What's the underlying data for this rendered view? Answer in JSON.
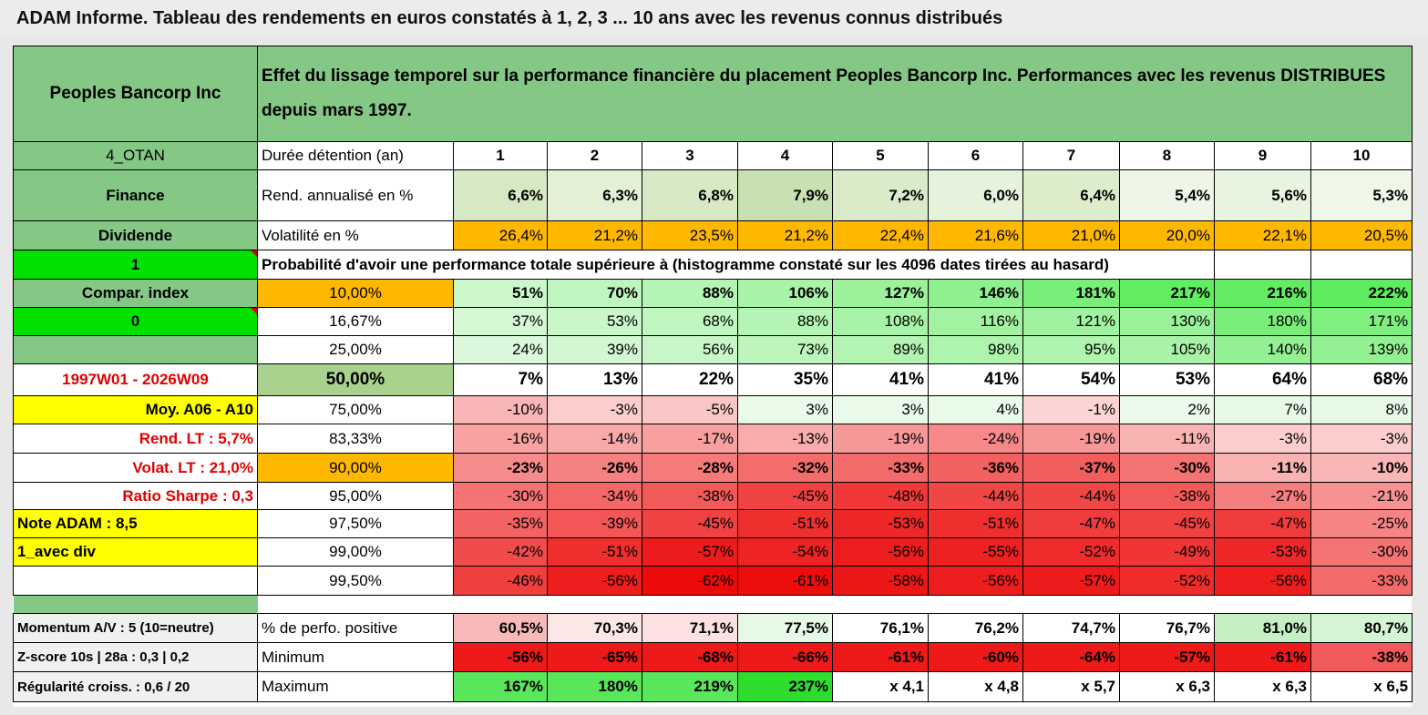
{
  "title": "ADAM Informe. Tableau des rendements en euros constatés à 1, 2, 3 ... 10 ans avec les revenus connus distribués",
  "header": {
    "company": "Peoples Bancorp Inc",
    "description": "Effet du lissage temporel sur la performance financière du placement Peoples Bancorp Inc. Performances avec les revenus DISTRIBUES depuis mars 1997."
  },
  "side": {
    "code": "4_OTAN",
    "sector": "Finance",
    "category": "Dividende",
    "flag1": "1",
    "compar_index": "Compar. index",
    "flag0": "0",
    "period": "1997W01 - 2026W09",
    "moy": "Moy. A06 - A10",
    "rend_lt": "Rend. LT :   5,7%",
    "volat_lt": "Volat. LT :   21,0%",
    "sharpe": "Ratio Sharpe :    0,3",
    "note": "Note ADAM : 8,5",
    "avec_div": "1_avec div"
  },
  "duration_label": "Durée détention (an)",
  "durations": [
    "1",
    "2",
    "3",
    "4",
    "5",
    "6",
    "7",
    "8",
    "9",
    "10"
  ],
  "rend_label": "Rend. annualisé en %",
  "rend": [
    "6,6%",
    "6,3%",
    "6,8%",
    "7,9%",
    "7,2%",
    "6,0%",
    "6,4%",
    "5,4%",
    "5,6%",
    "5,3%"
  ],
  "vol_label": "Volatilité en %",
  "vol": [
    "26,4%",
    "21,2%",
    "23,5%",
    "21,2%",
    "22,4%",
    "21,6%",
    "21,0%",
    "20,0%",
    "22,1%",
    "20,5%"
  ],
  "prob_label": "Probabilité d'avoir une performance totale supérieure à (histogramme constaté sur les 4096 dates tirées au hasard)",
  "quantiles": [
    {
      "p": "10,00%",
      "vals": [
        "51%",
        "70%",
        "88%",
        "106%",
        "127%",
        "146%",
        "181%",
        "217%",
        "216%",
        "222%"
      ]
    },
    {
      "p": "16,67%",
      "vals": [
        "37%",
        "53%",
        "68%",
        "88%",
        "108%",
        "116%",
        "121%",
        "130%",
        "180%",
        "171%"
      ]
    },
    {
      "p": "25,00%",
      "vals": [
        "24%",
        "39%",
        "56%",
        "73%",
        "89%",
        "98%",
        "95%",
        "105%",
        "140%",
        "139%"
      ]
    },
    {
      "p": "50,00%",
      "vals": [
        "7%",
        "13%",
        "22%",
        "35%",
        "41%",
        "41%",
        "54%",
        "53%",
        "64%",
        "68%"
      ]
    },
    {
      "p": "75,00%",
      "vals": [
        "-10%",
        "-3%",
        "-5%",
        "3%",
        "3%",
        "4%",
        "-1%",
        "2%",
        "7%",
        "8%"
      ]
    },
    {
      "p": "83,33%",
      "vals": [
        "-16%",
        "-14%",
        "-17%",
        "-13%",
        "-19%",
        "-24%",
        "-19%",
        "-11%",
        "-3%",
        "-3%"
      ]
    },
    {
      "p": "90,00%",
      "vals": [
        "-23%",
        "-26%",
        "-28%",
        "-32%",
        "-33%",
        "-36%",
        "-37%",
        "-30%",
        "-11%",
        "-10%"
      ]
    },
    {
      "p": "95,00%",
      "vals": [
        "-30%",
        "-34%",
        "-38%",
        "-45%",
        "-48%",
        "-44%",
        "-44%",
        "-38%",
        "-27%",
        "-21%"
      ]
    },
    {
      "p": "97,50%",
      "vals": [
        "-35%",
        "-39%",
        "-45%",
        "-51%",
        "-53%",
        "-51%",
        "-47%",
        "-45%",
        "-47%",
        "-25%"
      ]
    },
    {
      "p": "99,00%",
      "vals": [
        "-42%",
        "-51%",
        "-57%",
        "-54%",
        "-56%",
        "-55%",
        "-52%",
        "-49%",
        "-53%",
        "-30%"
      ]
    },
    {
      "p": "99,50%",
      "vals": [
        "-46%",
        "-56%",
        "-62%",
        "-61%",
        "-58%",
        "-56%",
        "-57%",
        "-52%",
        "-56%",
        "-33%"
      ]
    }
  ],
  "stats": [
    {
      "side": "Momentum A/V : 5 (10=neutre)",
      "label": "% de perfo. positive",
      "vals": [
        "60,5%",
        "70,3%",
        "71,1%",
        "77,5%",
        "76,1%",
        "76,2%",
        "74,7%",
        "76,7%",
        "81,0%",
        "80,7%"
      ]
    },
    {
      "side": "Z-score 10s | 28a : 0,3 | 0,2",
      "label": "Minimum",
      "vals": [
        "-56%",
        "-65%",
        "-68%",
        "-66%",
        "-61%",
        "-60%",
        "-64%",
        "-57%",
        "-61%",
        "-38%"
      ]
    },
    {
      "side": "Régularité croiss. : 0,6 / 20",
      "label": "Maximum",
      "vals": [
        "167%",
        "180%",
        "219%",
        "237%",
        "x 4,1",
        "x 4,8",
        "x 5,7",
        "x 6,3",
        "x 6,3",
        "x 6,5"
      ]
    }
  ],
  "colors": {
    "header_green": "#85c886",
    "lime": "#00e100",
    "yellow": "#ffff00",
    "orange": "#ffb800"
  }
}
